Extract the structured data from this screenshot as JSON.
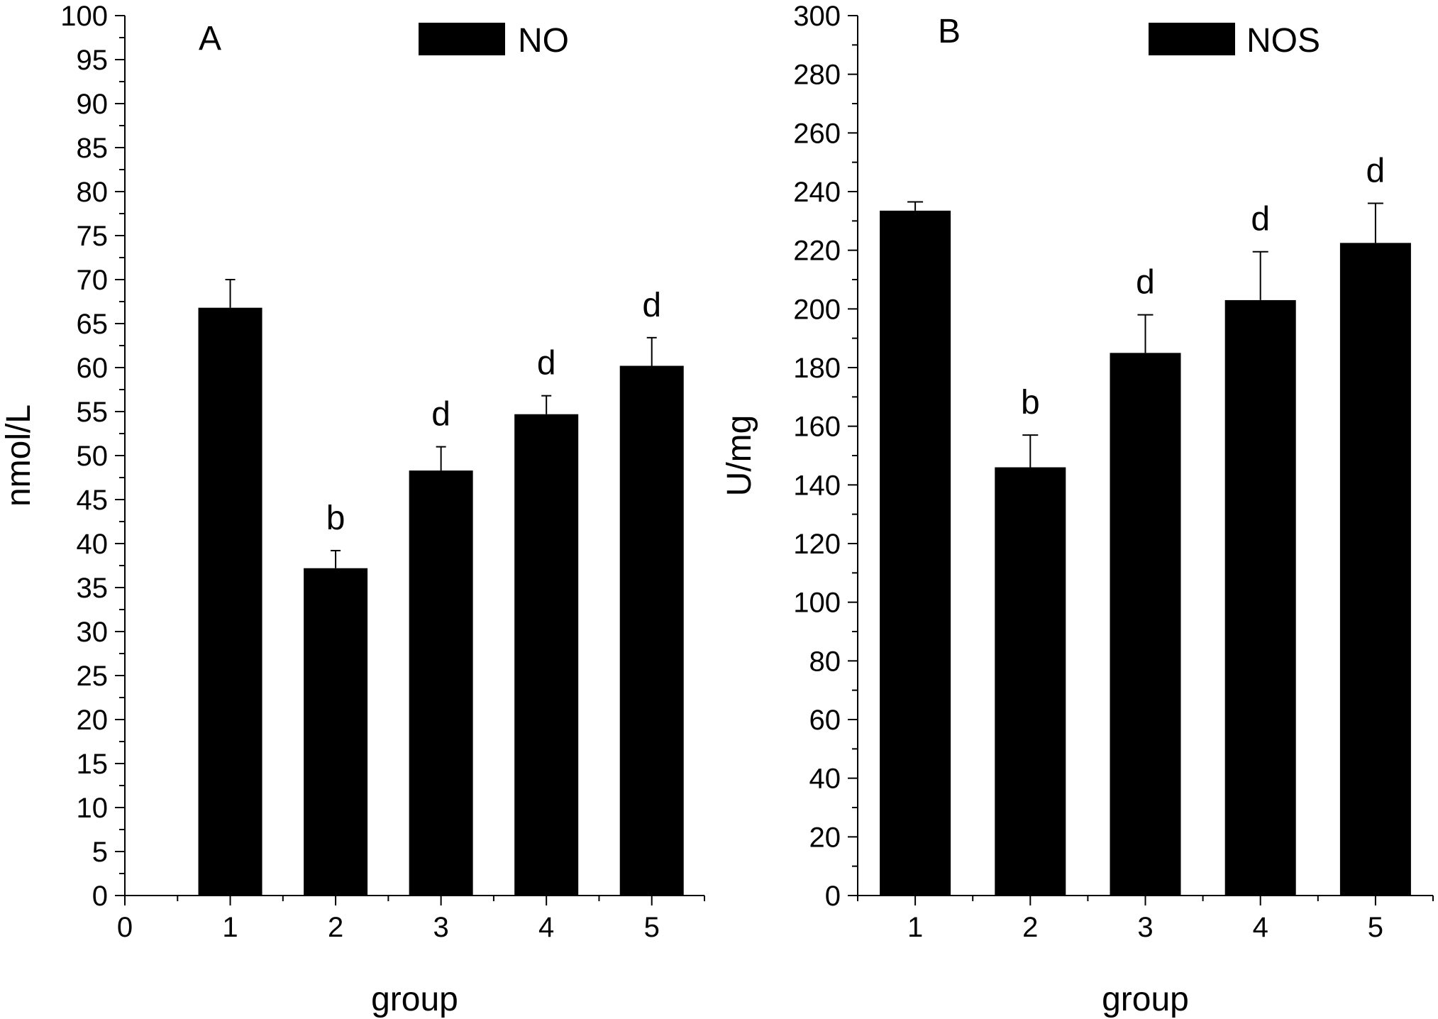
{
  "chart_data": [
    {
      "type": "bar",
      "panel_label": "A",
      "legend": [
        "NO"
      ],
      "legend_position": "top-right",
      "xlabel": "group",
      "ylabel": "nmol/L",
      "xlim": [
        0,
        5.5
      ],
      "ylim": [
        0,
        100
      ],
      "x_ticks": [
        "0",
        "1",
        "2",
        "3",
        "4",
        "5"
      ],
      "y_ticks": [
        "0",
        "5",
        "10",
        "15",
        "20",
        "25",
        "30",
        "35",
        "40",
        "45",
        "50",
        "55",
        "60",
        "65",
        "70",
        "75",
        "80",
        "85",
        "90",
        "95",
        "100"
      ],
      "categories": [
        1,
        2,
        3,
        4,
        5
      ],
      "values": [
        66.8,
        37.2,
        48.3,
        54.7,
        60.2
      ],
      "error_upper": [
        70.0,
        39.2,
        51.0,
        56.8,
        63.4
      ],
      "significance": [
        "",
        "b",
        "d",
        "d",
        "d"
      ],
      "grid": false
    },
    {
      "type": "bar",
      "panel_label": "B",
      "legend": [
        "NOS"
      ],
      "legend_position": "top-right",
      "xlabel": "group",
      "ylabel": "U/mg",
      "xlim": [
        0.5,
        5.5
      ],
      "ylim": [
        0,
        300
      ],
      "x_ticks": [
        "1",
        "2",
        "3",
        "4",
        "5"
      ],
      "y_ticks": [
        "0",
        "20",
        "40",
        "60",
        "80",
        "100",
        "120",
        "140",
        "160",
        "180",
        "200",
        "220",
        "240",
        "260",
        "280",
        "300"
      ],
      "categories": [
        1,
        2,
        3,
        4,
        5
      ],
      "values": [
        233.5,
        146.0,
        185.0,
        203.0,
        222.5
      ],
      "error_upper": [
        236.5,
        157.0,
        198.0,
        219.5,
        236.0
      ],
      "significance": [
        "",
        "b",
        "d",
        "d",
        "d"
      ],
      "grid": false
    }
  ]
}
